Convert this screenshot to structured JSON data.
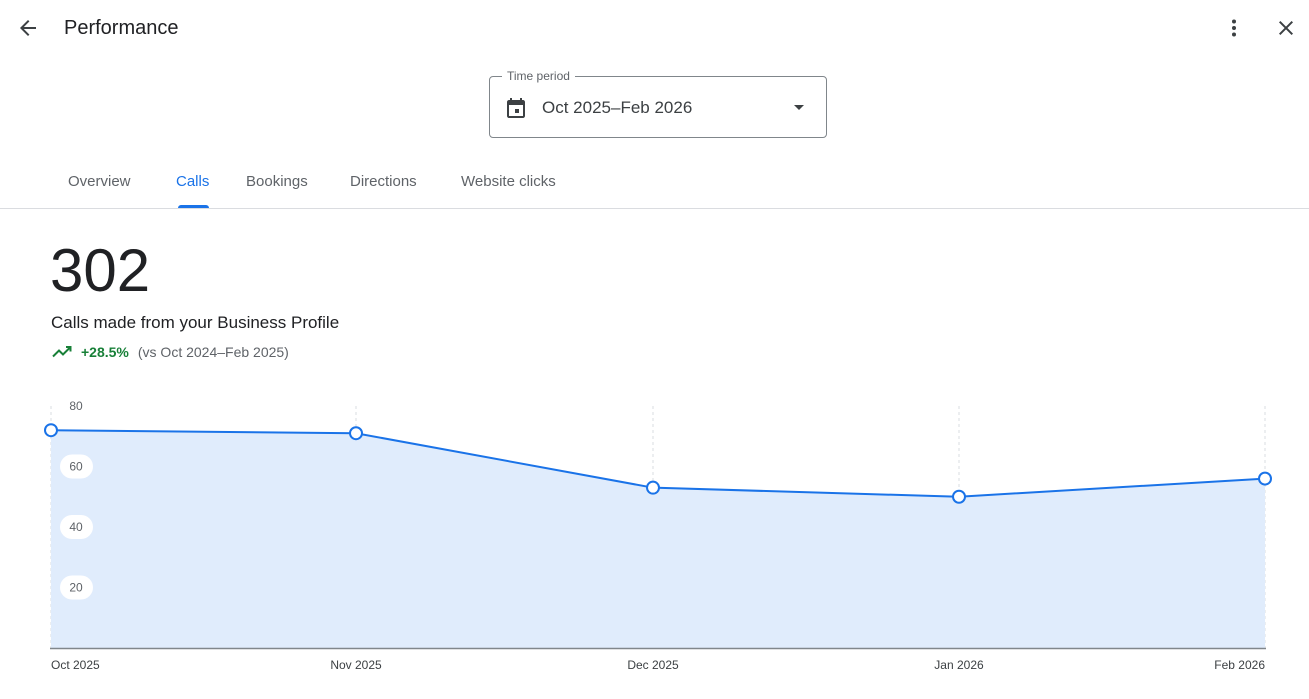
{
  "header": {
    "title": "Performance",
    "back_icon": "arrow-back-icon",
    "more_icon": "more-vert-icon",
    "close_icon": "close-icon"
  },
  "time_period": {
    "label": "Time period",
    "value": "Oct 2025–Feb 2026",
    "icon": "calendar-icon"
  },
  "tabs": [
    {
      "label": "Overview",
      "active": false
    },
    {
      "label": "Calls",
      "active": true
    },
    {
      "label": "Bookings",
      "active": false
    },
    {
      "label": "Directions",
      "active": false
    },
    {
      "label": "Website clicks",
      "active": false
    }
  ],
  "metric": {
    "value": "302",
    "label": "Calls made from your Business Profile",
    "change": "+28.5%",
    "comparison": "(vs Oct 2024–Feb 2025)",
    "trend_icon": "trending-up-icon"
  },
  "colors": {
    "accent": "#1a73e8",
    "area_fill": "#e0ecfc",
    "positive": "#188038"
  },
  "chart_data": {
    "type": "area",
    "categories": [
      "Oct 2025",
      "Nov 2025",
      "Dec 2025",
      "Jan 2026",
      "Feb 2026"
    ],
    "values": [
      72,
      71,
      53,
      50,
      56
    ],
    "y_ticks": [
      20,
      40,
      60,
      80
    ],
    "ylim": [
      0,
      80
    ],
    "grid": "vertical-dashed"
  }
}
